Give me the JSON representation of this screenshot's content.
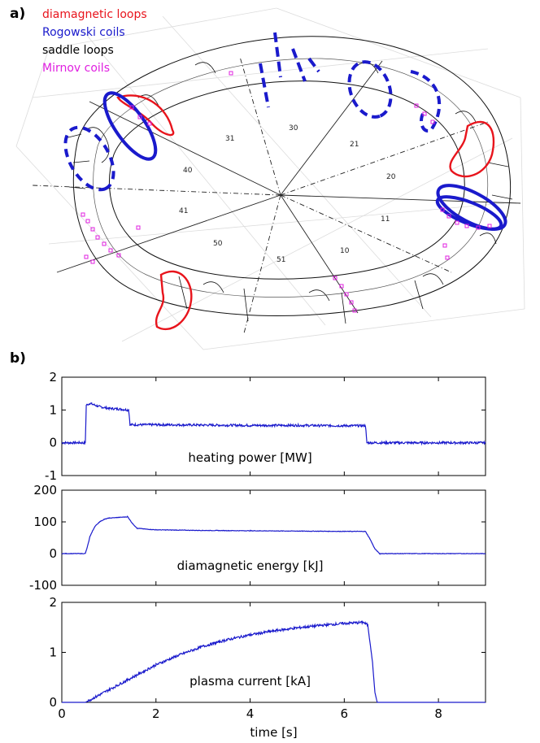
{
  "panel_a": {
    "label": "a)",
    "legend": [
      {
        "text": "diamagnetic loops",
        "color": "#e8141c"
      },
      {
        "text": "Rogowski coils",
        "color": "#1a1acc"
      },
      {
        "text": "saddle loops",
        "color": "#000000"
      },
      {
        "text": "Mirnov coils",
        "color": "#e020e0"
      }
    ],
    "segments": [
      "31",
      "30",
      "21",
      "20",
      "40",
      "11",
      "41",
      "50",
      "10",
      "51"
    ]
  },
  "panel_b": {
    "label": "b)"
  },
  "chart_data": [
    {
      "type": "line",
      "title": "heating power [MW]",
      "xlabel": "",
      "ylabel": "",
      "xlim": [
        0,
        9
      ],
      "ylim": [
        -1,
        2
      ],
      "yticks": [
        -1,
        0,
        1,
        2
      ],
      "xticks": [
        0,
        2,
        4,
        6,
        8
      ],
      "color": "#1a1acc",
      "x": [
        0,
        0.5,
        0.52,
        0.6,
        0.8,
        1.0,
        1.2,
        1.42,
        1.45,
        2,
        3,
        4,
        5,
        6,
        6.45,
        6.48,
        7,
        8,
        9
      ],
      "y": [
        0,
        0,
        1.15,
        1.2,
        1.1,
        1.05,
        1.03,
        1.0,
        0.55,
        0.55,
        0.54,
        0.53,
        0.53,
        0.52,
        0.52,
        0.0,
        0.0,
        0.0,
        0.0
      ]
    },
    {
      "type": "line",
      "title": "diamagnetic energy [kJ]",
      "xlabel": "",
      "ylabel": "",
      "xlim": [
        0,
        9
      ],
      "ylim": [
        -100,
        200
      ],
      "yticks": [
        -100,
        0,
        100,
        200
      ],
      "xticks": [
        0,
        2,
        4,
        6,
        8
      ],
      "color": "#1a1acc",
      "x": [
        0,
        0.5,
        0.55,
        0.6,
        0.7,
        0.8,
        0.9,
        1.0,
        1.2,
        1.4,
        1.5,
        1.6,
        1.8,
        2,
        3,
        4,
        5,
        6,
        6.45,
        6.55,
        6.65,
        6.75,
        7,
        8,
        9
      ],
      "y": [
        0,
        0,
        25,
        55,
        85,
        100,
        108,
        112,
        114,
        116,
        95,
        80,
        77,
        75,
        73,
        72,
        71,
        70,
        70,
        45,
        15,
        0,
        0,
        0,
        0
      ]
    },
    {
      "type": "line",
      "title": "plasma current [kA]",
      "xlabel": "time [s]",
      "ylabel": "",
      "xlim": [
        0,
        9
      ],
      "ylim": [
        0,
        2
      ],
      "yticks": [
        0,
        1,
        2
      ],
      "xticks": [
        0,
        2,
        4,
        6,
        8
      ],
      "color": "#1a1acc",
      "x": [
        0,
        0.5,
        0.6,
        0.8,
        1.0,
        1.5,
        2,
        2.5,
        3,
        3.5,
        4,
        4.5,
        5,
        5.5,
        6,
        6.4,
        6.5,
        6.6,
        6.65,
        6.7,
        7,
        8,
        9
      ],
      "y": [
        0,
        0,
        0.05,
        0.15,
        0.25,
        0.5,
        0.75,
        0.95,
        1.12,
        1.25,
        1.35,
        1.43,
        1.49,
        1.54,
        1.58,
        1.6,
        1.55,
        0.8,
        0.2,
        0,
        0,
        0,
        0
      ]
    }
  ]
}
